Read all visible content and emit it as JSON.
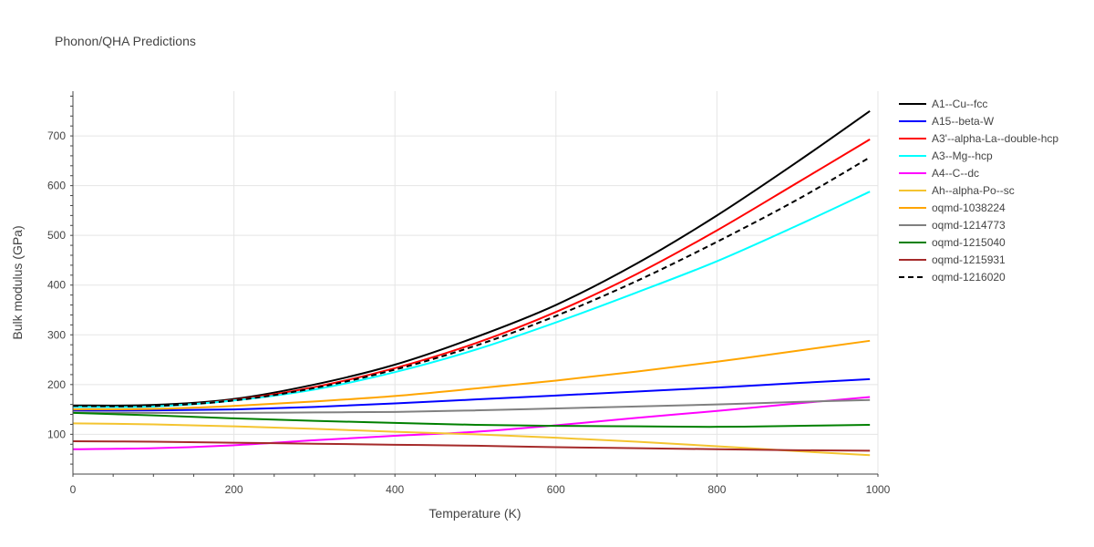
{
  "chart_data": {
    "type": "line",
    "title": "Phonon/QHA Predictions",
    "xlabel": "Temperature (K)",
    "ylabel": "Bulk modulus (GPa)",
    "xlim": [
      0,
      1000
    ],
    "ylim": [
      20,
      790
    ],
    "xticks": [
      0,
      200,
      400,
      600,
      800,
      1000
    ],
    "yticks": [
      100,
      200,
      300,
      400,
      500,
      600,
      700
    ],
    "grid": true,
    "legend_position": "right",
    "x": [
      0,
      100,
      200,
      300,
      400,
      500,
      600,
      700,
      800,
      900,
      990
    ],
    "series": [
      {
        "name": "A1--Cu--fcc",
        "color": "#000000",
        "dash": false,
        "values": [
          158,
          159,
          171,
          200,
          240,
          295,
          360,
          443,
          540,
          648,
          750
        ]
      },
      {
        "name": "A15--beta-W",
        "color": "#0000ff",
        "dash": false,
        "values": [
          148,
          148,
          150,
          155,
          162,
          170,
          178,
          186,
          194,
          203,
          211
        ]
      },
      {
        "name": "A3'--alpha-La--double-hcp",
        "color": "#ff0000",
        "dash": false,
        "values": [
          155,
          156,
          169,
          195,
          233,
          283,
          346,
          422,
          510,
          606,
          693
        ]
      },
      {
        "name": "A3--Mg--hcp",
        "color": "#00ffff",
        "dash": false,
        "values": [
          155,
          156,
          168,
          190,
          225,
          270,
          325,
          385,
          448,
          520,
          588
        ]
      },
      {
        "name": "A4--C--dc",
        "color": "#ff00ff",
        "dash": false,
        "values": [
          70,
          72,
          78,
          88,
          97,
          105,
          118,
          133,
          147,
          162,
          175
        ]
      },
      {
        "name": "Ah--alpha-Po--sc",
        "color": "#f4c430",
        "dash": false,
        "values": [
          122,
          120,
          116,
          111,
          105,
          100,
          93,
          85,
          76,
          66,
          58
        ]
      },
      {
        "name": "oqmd-1038224",
        "color": "#ffa500",
        "dash": false,
        "values": [
          150,
          151,
          157,
          166,
          177,
          192,
          208,
          226,
          246,
          268,
          288
        ]
      },
      {
        "name": "oqmd-1214773",
        "color": "#808080",
        "dash": false,
        "values": [
          144,
          143,
          143,
          144,
          145,
          148,
          152,
          156,
          160,
          165,
          169
        ]
      },
      {
        "name": "oqmd-1215040",
        "color": "#008000",
        "dash": false,
        "values": [
          143,
          138,
          132,
          127,
          123,
          119,
          117,
          116,
          115,
          117,
          119
        ]
      },
      {
        "name": "oqmd-1215931",
        "color": "#a52a2a",
        "dash": false,
        "values": [
          86,
          85,
          83,
          81,
          79,
          77,
          74,
          72,
          70,
          68,
          67
        ]
      },
      {
        "name": "oqmd-1216020",
        "color": "#000000",
        "dash": true,
        "values": [
          157,
          157,
          168,
          193,
          230,
          278,
          338,
          408,
          487,
          572,
          657
        ]
      }
    ]
  }
}
